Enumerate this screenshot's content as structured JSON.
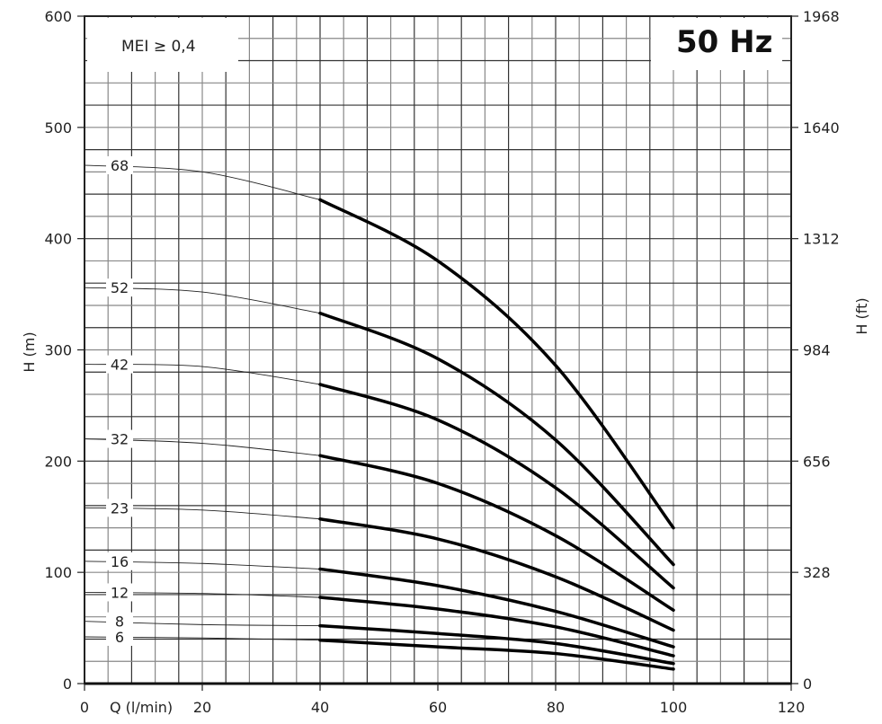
{
  "chart_data": {
    "type": "line",
    "title": "50 Hz",
    "annotation": "MEI ≥ 0,4",
    "xlabel": "Q (l/min)",
    "ylabel": "H (m)",
    "ylabel_right": "H (ft)",
    "xlim": [
      0,
      120
    ],
    "ylim": [
      0,
      600
    ],
    "x_ticks": [
      0,
      20,
      40,
      60,
      80,
      100,
      120
    ],
    "y_ticks": [
      0,
      100,
      200,
      300,
      400,
      500,
      600
    ],
    "y_right_ticks": [
      "0",
      "328",
      "656",
      "984",
      "1312",
      "1640",
      "1968"
    ],
    "grid": true,
    "note": "thin line below 40 l/min, thick line 40–100 l/min",
    "series": [
      {
        "name": "68",
        "x": [
          0,
          20,
          40,
          60,
          80,
          100
        ],
        "y": [
          466,
          460,
          435,
          380,
          286,
          140
        ]
      },
      {
        "name": "52",
        "x": [
          0,
          20,
          40,
          60,
          80,
          100
        ],
        "y": [
          356,
          352,
          333,
          292,
          219,
          107
        ]
      },
      {
        "name": "42",
        "x": [
          0,
          20,
          40,
          60,
          80,
          100
        ],
        "y": [
          287,
          285,
          269,
          237,
          176,
          86
        ]
      },
      {
        "name": "32",
        "x": [
          0,
          20,
          40,
          60,
          80,
          100
        ],
        "y": [
          220,
          216,
          205,
          180,
          133,
          66
        ]
      },
      {
        "name": "23",
        "x": [
          0,
          20,
          40,
          60,
          80,
          100
        ],
        "y": [
          158,
          156,
          148,
          130,
          96,
          48
        ]
      },
      {
        "name": "16",
        "x": [
          0,
          20,
          40,
          60,
          80,
          100
        ],
        "y": [
          110,
          108,
          103,
          88,
          65,
          33
        ]
      },
      {
        "name": "12",
        "x": [
          0,
          20,
          40,
          60,
          80,
          100
        ],
        "y": [
          82,
          81,
          77.5,
          67,
          51,
          25
        ]
      },
      {
        "name": "8",
        "x": [
          0,
          20,
          40,
          60,
          80,
          100
        ],
        "y": [
          56,
          53,
          52,
          45,
          36,
          18
        ]
      },
      {
        "name": "6",
        "x": [
          0,
          20,
          40,
          60,
          80,
          100
        ],
        "y": [
          42,
          41,
          39,
          33,
          27,
          13
        ]
      }
    ]
  }
}
